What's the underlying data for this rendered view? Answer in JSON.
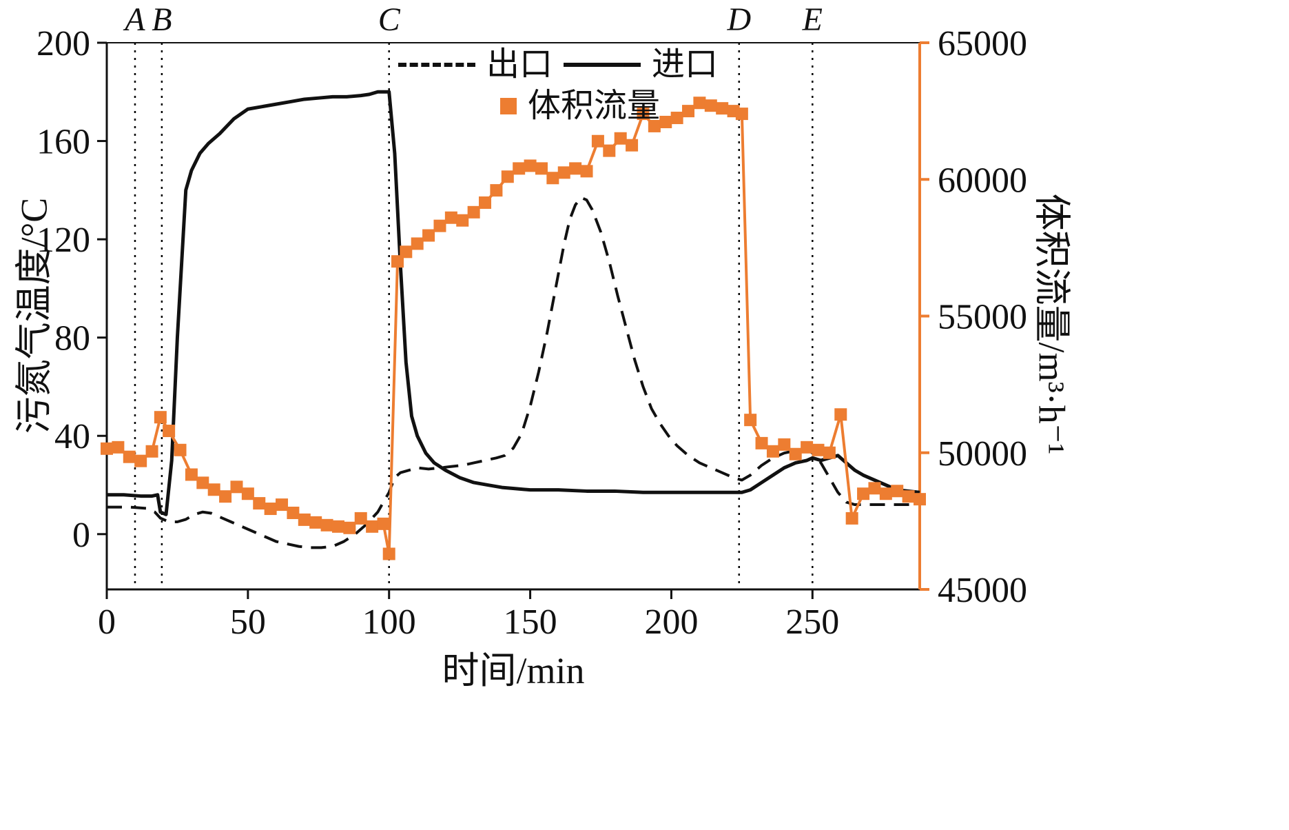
{
  "chart_data": {
    "type": "line",
    "title": "",
    "xlabel": "时间/min",
    "ylabel_left": "污氮气温度/°C",
    "ylabel_right": "体积流量/m³·h⁻¹",
    "xlim": [
      0,
      288
    ],
    "xticks": [
      0,
      50,
      100,
      150,
      200,
      250
    ],
    "ylim_left": [
      -22.5,
      200
    ],
    "yticks_left": [
      0,
      40,
      80,
      120,
      160,
      200
    ],
    "ylim_right": [
      45000,
      65000
    ],
    "yticks_right": [
      45000,
      50000,
      55000,
      60000,
      65000
    ],
    "grid": false,
    "legend_position": "top-center-inside",
    "legend": {
      "outlet": "出口",
      "inlet": "进口",
      "flow": "体积流量"
    },
    "colors": {
      "line": "#111111",
      "flow": "#ED7D31"
    },
    "event_lines": [
      {
        "label": "A",
        "x": 10
      },
      {
        "label": "B",
        "x": 19.5
      },
      {
        "label": "C",
        "x": 100
      },
      {
        "label": "D",
        "x": 224
      },
      {
        "label": "E",
        "x": 250
      }
    ],
    "series": [
      {
        "name": "出口",
        "axis": "left",
        "style": "dashed",
        "color": "#111111",
        "width": 4,
        "points": [
          [
            0,
            11
          ],
          [
            8,
            11
          ],
          [
            14,
            10.5
          ],
          [
            17,
            9
          ],
          [
            19,
            6.5
          ],
          [
            22,
            5
          ],
          [
            25,
            5
          ],
          [
            28,
            6
          ],
          [
            31,
            8
          ],
          [
            34,
            9
          ],
          [
            37,
            8.5
          ],
          [
            40,
            7
          ],
          [
            44,
            5
          ],
          [
            48,
            3
          ],
          [
            52,
            1
          ],
          [
            56,
            -1
          ],
          [
            60,
            -3
          ],
          [
            64,
            -4
          ],
          [
            68,
            -5
          ],
          [
            72,
            -5.5
          ],
          [
            76,
            -5.5
          ],
          [
            80,
            -5
          ],
          [
            84,
            -3
          ],
          [
            88,
            0
          ],
          [
            92,
            4
          ],
          [
            96,
            9
          ],
          [
            100,
            17
          ],
          [
            102,
            23
          ],
          [
            104,
            25
          ],
          [
            107,
            26
          ],
          [
            110,
            27
          ],
          [
            114,
            26.5
          ],
          [
            118,
            27
          ],
          [
            122,
            27.5
          ],
          [
            126,
            28
          ],
          [
            130,
            29
          ],
          [
            134,
            30
          ],
          [
            138,
            31
          ],
          [
            141,
            32
          ],
          [
            144,
            35
          ],
          [
            147,
            41
          ],
          [
            150,
            52
          ],
          [
            153,
            66
          ],
          [
            156,
            82
          ],
          [
            159,
            100
          ],
          [
            162,
            118
          ],
          [
            164,
            128
          ],
          [
            166,
            134
          ],
          [
            168,
            137
          ],
          [
            170,
            136
          ],
          [
            172,
            132
          ],
          [
            175,
            123
          ],
          [
            178,
            111
          ],
          [
            181,
            97
          ],
          [
            184,
            84
          ],
          [
            187,
            71
          ],
          [
            190,
            60
          ],
          [
            193,
            51
          ],
          [
            196,
            45
          ],
          [
            199,
            40
          ],
          [
            202,
            36
          ],
          [
            206,
            32
          ],
          [
            210,
            29
          ],
          [
            214,
            27
          ],
          [
            218,
            25
          ],
          [
            222,
            23
          ],
          [
            225,
            22
          ],
          [
            228,
            24
          ],
          [
            232,
            28
          ],
          [
            236,
            31
          ],
          [
            240,
            33
          ],
          [
            244,
            34
          ],
          [
            247,
            35
          ],
          [
            250,
            33
          ],
          [
            253,
            29
          ],
          [
            256,
            23
          ],
          [
            259,
            17
          ],
          [
            262,
            13
          ],
          [
            265,
            12
          ],
          [
            270,
            12
          ],
          [
            275,
            12
          ],
          [
            280,
            12
          ],
          [
            285,
            12
          ],
          [
            288,
            12.5
          ]
        ]
      },
      {
        "name": "进口",
        "axis": "left",
        "style": "solid",
        "color": "#111111",
        "width": 5,
        "points": [
          [
            0,
            16
          ],
          [
            6,
            16
          ],
          [
            12,
            15.5
          ],
          [
            16,
            15.5
          ],
          [
            18,
            16
          ],
          [
            19,
            9
          ],
          [
            21,
            8
          ],
          [
            23,
            30
          ],
          [
            25,
            80
          ],
          [
            27,
            120
          ],
          [
            28,
            140
          ],
          [
            30,
            148
          ],
          [
            33,
            155
          ],
          [
            36,
            159
          ],
          [
            40,
            163
          ],
          [
            45,
            169
          ],
          [
            50,
            173
          ],
          [
            55,
            174
          ],
          [
            60,
            175
          ],
          [
            65,
            176
          ],
          [
            70,
            177
          ],
          [
            75,
            177.5
          ],
          [
            80,
            178
          ],
          [
            85,
            178
          ],
          [
            90,
            178.5
          ],
          [
            93,
            179
          ],
          [
            96,
            180
          ],
          [
            100,
            180
          ],
          [
            102,
            155
          ],
          [
            104,
            110
          ],
          [
            106,
            70
          ],
          [
            108,
            48
          ],
          [
            110,
            40
          ],
          [
            113,
            33
          ],
          [
            116,
            29
          ],
          [
            120,
            26
          ],
          [
            125,
            23
          ],
          [
            130,
            21
          ],
          [
            135,
            20
          ],
          [
            140,
            19
          ],
          [
            145,
            18.5
          ],
          [
            150,
            18
          ],
          [
            160,
            18
          ],
          [
            170,
            17.5
          ],
          [
            180,
            17.5
          ],
          [
            190,
            17
          ],
          [
            200,
            17
          ],
          [
            210,
            17
          ],
          [
            220,
            17
          ],
          [
            225,
            17
          ],
          [
            228,
            18
          ],
          [
            232,
            21
          ],
          [
            236,
            24
          ],
          [
            240,
            27
          ],
          [
            244,
            29
          ],
          [
            248,
            30
          ],
          [
            250,
            31
          ],
          [
            253,
            30
          ],
          [
            256,
            31
          ],
          [
            259,
            32
          ],
          [
            262,
            29
          ],
          [
            265,
            26
          ],
          [
            268,
            24
          ],
          [
            272,
            22
          ],
          [
            276,
            20
          ],
          [
            280,
            18
          ],
          [
            284,
            17.5
          ],
          [
            288,
            17
          ]
        ]
      },
      {
        "name": "体积流量",
        "axis": "right",
        "style": "solid",
        "marker": "square",
        "color": "#ED7D31",
        "width": 4,
        "points": [
          [
            0,
            50150
          ],
          [
            4,
            50200
          ],
          [
            8,
            49850
          ],
          [
            12,
            49700
          ],
          [
            16,
            50050
          ],
          [
            19,
            51300
          ],
          [
            22,
            50800
          ],
          [
            26,
            50100
          ],
          [
            30,
            49200
          ],
          [
            34,
            48900
          ],
          [
            38,
            48650
          ],
          [
            42,
            48400
          ],
          [
            46,
            48750
          ],
          [
            50,
            48500
          ],
          [
            54,
            48150
          ],
          [
            58,
            47950
          ],
          [
            62,
            48100
          ],
          [
            66,
            47800
          ],
          [
            70,
            47550
          ],
          [
            74,
            47450
          ],
          [
            78,
            47350
          ],
          [
            82,
            47300
          ],
          [
            86,
            47250
          ],
          [
            90,
            47600
          ],
          [
            94,
            47300
          ],
          [
            98,
            47400
          ],
          [
            100,
            46300
          ],
          [
            103,
            57000
          ],
          [
            106,
            57350
          ],
          [
            110,
            57650
          ],
          [
            114,
            57950
          ],
          [
            118,
            58300
          ],
          [
            122,
            58600
          ],
          [
            126,
            58500
          ],
          [
            130,
            58800
          ],
          [
            134,
            59150
          ],
          [
            138,
            59600
          ],
          [
            142,
            60100
          ],
          [
            146,
            60400
          ],
          [
            150,
            60500
          ],
          [
            154,
            60400
          ],
          [
            158,
            60050
          ],
          [
            162,
            60250
          ],
          [
            166,
            60400
          ],
          [
            170,
            60300
          ],
          [
            174,
            61400
          ],
          [
            178,
            61050
          ],
          [
            182,
            61500
          ],
          [
            186,
            61250
          ],
          [
            190,
            62400
          ],
          [
            194,
            61950
          ],
          [
            198,
            62100
          ],
          [
            202,
            62250
          ],
          [
            206,
            62500
          ],
          [
            210,
            62800
          ],
          [
            214,
            62700
          ],
          [
            218,
            62600
          ],
          [
            222,
            62500
          ],
          [
            225,
            62400
          ],
          [
            228,
            51200
          ],
          [
            232,
            50350
          ],
          [
            236,
            50050
          ],
          [
            240,
            50300
          ],
          [
            244,
            49950
          ],
          [
            248,
            50200
          ],
          [
            252,
            50100
          ],
          [
            256,
            50000
          ],
          [
            260,
            51400
          ],
          [
            264,
            47600
          ],
          [
            268,
            48500
          ],
          [
            272,
            48700
          ],
          [
            276,
            48500
          ],
          [
            280,
            48600
          ],
          [
            284,
            48400
          ],
          [
            288,
            48300
          ]
        ]
      }
    ]
  }
}
